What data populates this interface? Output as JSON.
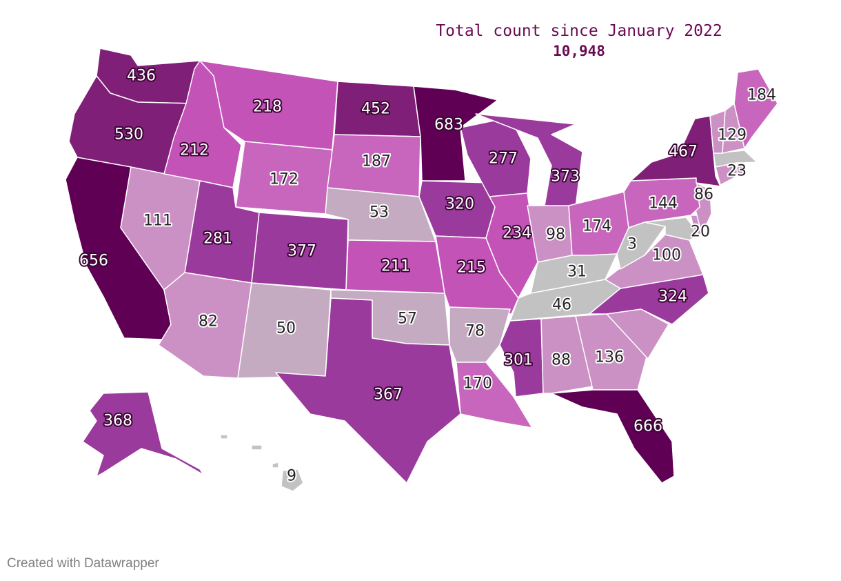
{
  "header": {
    "title": "Total count since January 2022",
    "total": "10,948"
  },
  "footer": {
    "credit": "Created with Datawrapper"
  },
  "legend_colors": {
    "lowest": "#c2c2c2",
    "low": "#c5abc1",
    "low_mid": "#cc91c4",
    "mid": "#c866bd",
    "mid_high": "#c453b8",
    "high": "#9a3a9c",
    "higher": "#7f1f77",
    "highest": "#5f0055"
  },
  "states": [
    {
      "code": "WA",
      "value": 436
    },
    {
      "code": "OR",
      "value": 530
    },
    {
      "code": "CA",
      "value": 656
    },
    {
      "code": "NV",
      "value": 111
    },
    {
      "code": "ID",
      "value": 212
    },
    {
      "code": "MT",
      "value": 218
    },
    {
      "code": "WY",
      "value": 172
    },
    {
      "code": "UT",
      "value": 281
    },
    {
      "code": "AZ",
      "value": 82
    },
    {
      "code": "CO",
      "value": 377
    },
    {
      "code": "NM",
      "value": 50
    },
    {
      "code": "ND",
      "value": 452
    },
    {
      "code": "SD",
      "value": 187
    },
    {
      "code": "NE",
      "value": 53
    },
    {
      "code": "KS",
      "value": 211
    },
    {
      "code": "OK",
      "value": 57
    },
    {
      "code": "TX",
      "value": 367
    },
    {
      "code": "MN",
      "value": 683
    },
    {
      "code": "IA",
      "value": 320
    },
    {
      "code": "MO",
      "value": 215
    },
    {
      "code": "AR",
      "value": 78
    },
    {
      "code": "LA",
      "value": 170
    },
    {
      "code": "WI",
      "value": 277
    },
    {
      "code": "IL",
      "value": 234
    },
    {
      "code": "MI",
      "value": 373
    },
    {
      "code": "IN",
      "value": 98
    },
    {
      "code": "OH",
      "value": 174
    },
    {
      "code": "KY",
      "value": 31
    },
    {
      "code": "TN",
      "value": 46
    },
    {
      "code": "MS",
      "value": 301
    },
    {
      "code": "AL",
      "value": 88
    },
    {
      "code": "GA",
      "value": 136
    },
    {
      "code": "FL",
      "value": 666
    },
    {
      "code": "SC",
      "value": null
    },
    {
      "code": "NC",
      "value": 324
    },
    {
      "code": "VA",
      "value": 100
    },
    {
      "code": "WV",
      "value": 3
    },
    {
      "code": "MD",
      "value": 20
    },
    {
      "code": "DE",
      "value": null
    },
    {
      "code": "NJ",
      "value": 86
    },
    {
      "code": "PA",
      "value": 144
    },
    {
      "code": "NY",
      "value": 467
    },
    {
      "code": "CT",
      "value": null
    },
    {
      "code": "RI",
      "value": null
    },
    {
      "code": "MA",
      "value": 23
    },
    {
      "code": "VT",
      "value": null
    },
    {
      "code": "NH",
      "value": 129
    },
    {
      "code": "ME",
      "value": 184
    },
    {
      "code": "AK",
      "value": 368
    },
    {
      "code": "HI",
      "value": 9
    }
  ]
}
